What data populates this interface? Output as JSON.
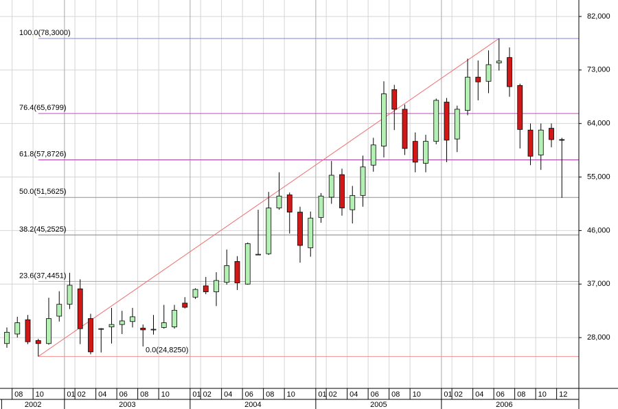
{
  "chart_data": {
    "type": "candlestick",
    "categories": [
      null,
      "08",
      null,
      "10",
      null,
      null,
      "01",
      "02",
      null,
      "04",
      null,
      "06",
      null,
      "08",
      null,
      "10",
      null,
      null,
      "01",
      "02",
      null,
      "04",
      null,
      "06",
      null,
      "08",
      null,
      "10",
      null,
      null,
      "01",
      "02",
      null,
      "04",
      null,
      "06",
      null,
      "08",
      null,
      "10",
      null,
      null,
      "01",
      "02",
      null,
      "04",
      null,
      "06",
      null,
      "08",
      null,
      "10",
      null,
      "12"
    ],
    "years": [
      "2002",
      "2003",
      "2004",
      "2005",
      "2006"
    ],
    "series": [
      {
        "up_color": "#b4f0b4",
        "down_color": "#d01818",
        "open": [
          27000,
          28600,
          31000,
          27500,
          27000,
          31600,
          33600,
          36200,
          31200,
          29400,
          29800,
          30200,
          30700,
          29600,
          29300,
          29700,
          29800,
          33800,
          34800,
          36700,
          35700,
          37300,
          40800,
          37000,
          41900,
          42100,
          49800,
          52000,
          49100,
          43100,
          48200,
          51600,
          55400,
          49500,
          51900,
          57000,
          60200,
          69700,
          66400,
          61000,
          57300,
          61000,
          67600,
          61400,
          66200,
          71800,
          71100,
          74200,
          75100,
          70400,
          62900,
          58700,
          63200,
          61300
        ],
        "high": [
          29700,
          31500,
          31800,
          27800,
          34700,
          35800,
          38900,
          37800,
          32000,
          29600,
          33000,
          32500,
          33000,
          30200,
          31800,
          33500,
          33500,
          34800,
          36300,
          38200,
          39000,
          42800,
          41700,
          44000,
          49500,
          52500,
          55800,
          52400,
          50000,
          49200,
          52300,
          57700,
          56400,
          53500,
          58600,
          61600,
          71100,
          70500,
          67200,
          62500,
          62100,
          68200,
          68300,
          67000,
          74900,
          74600,
          76300,
          78300,
          76800,
          70700,
          64000,
          64000,
          64000,
          61600
        ],
        "low": [
          26300,
          28000,
          26900,
          24825,
          26800,
          30700,
          32800,
          26900,
          25200,
          25500,
          27000,
          28600,
          29700,
          26500,
          28500,
          29500,
          29500,
          32900,
          34500,
          35300,
          33300,
          36900,
          36000,
          36900,
          41900,
          41900,
          49500,
          45500,
          40600,
          41600,
          47300,
          50500,
          48500,
          47200,
          50000,
          55900,
          58300,
          62900,
          58700,
          55800,
          55800,
          60500,
          57500,
          59200,
          65400,
          67900,
          69100,
          72900,
          68500,
          59800,
          57000,
          56200,
          60000,
          51500
        ],
        "close": [
          28900,
          30500,
          27300,
          27000,
          31200,
          33600,
          36800,
          29500,
          25600,
          29500,
          30200,
          30800,
          31500,
          29300,
          29400,
          30500,
          32600,
          33100,
          36100,
          35700,
          37600,
          40100,
          37200,
          43800,
          42000,
          49800,
          51800,
          49100,
          43500,
          48100,
          51800,
          55300,
          49800,
          51900,
          56700,
          60400,
          69000,
          66400,
          59800,
          57500,
          61000,
          67900,
          61200,
          66400,
          71800,
          71000,
          73900,
          74500,
          70200,
          63000,
          58500,
          62900,
          61300,
          61200
        ]
      }
    ],
    "fib_levels": [
      {
        "ratio": 100.0,
        "price": 78300,
        "label": "100.0(78,3000)",
        "color": "#3a3ad8",
        "line_color": "#8080e8"
      },
      {
        "ratio": 76.4,
        "price": 65680,
        "label": "76.4(65,6799)",
        "color": "#d020d0",
        "line_color": "#d040d0"
      },
      {
        "ratio": 61.8,
        "price": 57873,
        "label": "61.8(57,8726)",
        "color": "#a01890",
        "line_color": "#a030a0"
      },
      {
        "ratio": 50.0,
        "price": 51563,
        "label": "50.0(51,5625)",
        "color": "#1a8a1a",
        "line_color": "#909090"
      },
      {
        "ratio": 38.2,
        "price": 45253,
        "label": "38.2(45,2525)",
        "color": "#202020",
        "line_color": "#808080"
      },
      {
        "ratio": 23.6,
        "price": 37445,
        "label": "23.6(37,4451)",
        "color": "#c08080",
        "line_color": "#b0a0a0"
      },
      {
        "ratio": 0.0,
        "price": 24825,
        "label": "0.0(24,8250)",
        "color": "#e01010",
        "line_color": "#f09090"
      }
    ],
    "trend_color": "#f07070",
    "ylim": [
      19460,
      84770
    ],
    "yticks": [
      {
        "value": 28000,
        "label": "28,000"
      },
      {
        "value": 37000,
        "label": "37,000"
      },
      {
        "value": 46000,
        "label": "46,000"
      },
      {
        "value": 55000,
        "label": "55,000"
      },
      {
        "value": 64000,
        "label": "64,000"
      },
      {
        "value": 73000,
        "label": "73,000"
      },
      {
        "value": 82000,
        "label": "82,000"
      }
    ],
    "grid": true
  }
}
